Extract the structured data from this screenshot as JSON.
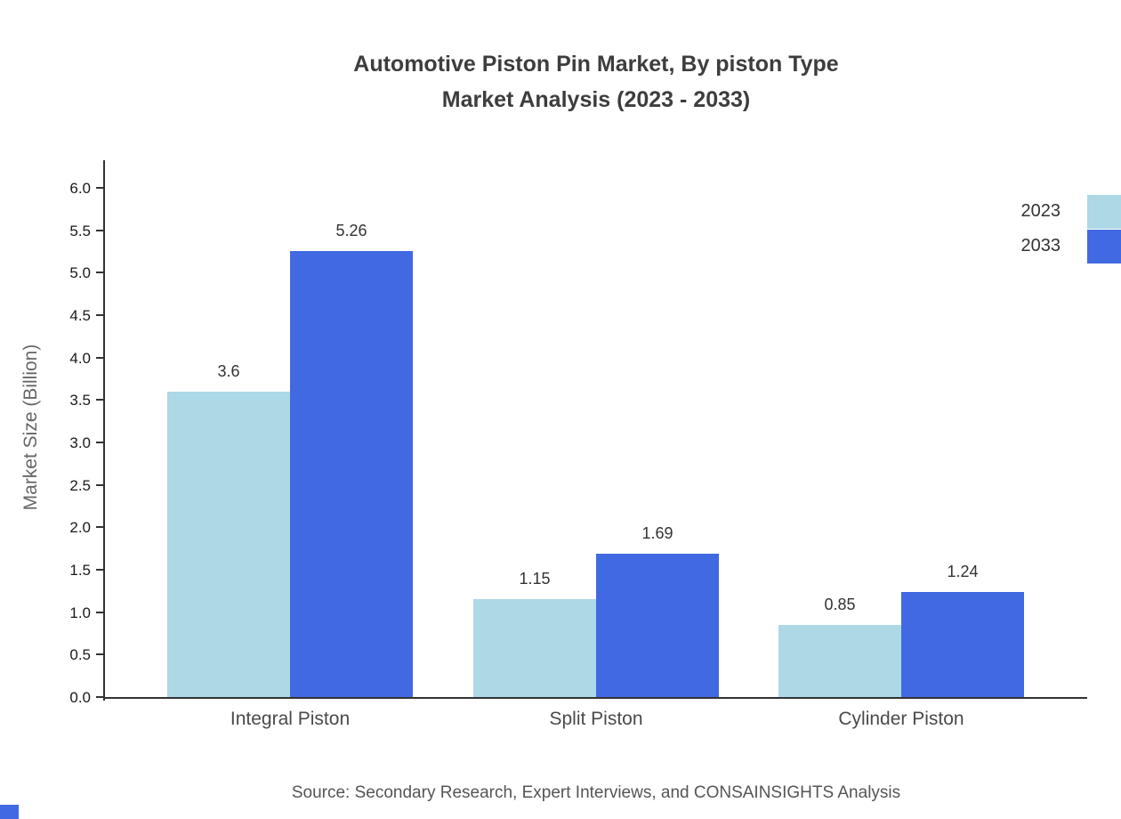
{
  "chart_data": {
    "type": "bar",
    "title": "Automotive Piston Pin Market, By piston Type",
    "subtitle": "Market Analysis (2023 - 2033)",
    "categories": [
      "Integral Piston",
      "Split Piston",
      "Cylinder Piston"
    ],
    "series": [
      {
        "name": "2023",
        "color": "#add8e6",
        "values": [
          3.6,
          1.15,
          0.85
        ]
      },
      {
        "name": "2033",
        "color": "#4169e1",
        "values": [
          5.26,
          1.69,
          1.24
        ]
      }
    ],
    "value_labels": [
      [
        "3.6",
        "1.15",
        "0.85"
      ],
      [
        "5.26",
        "1.69",
        "1.24"
      ]
    ],
    "ylabel": "Market Size (Billion)",
    "xlabel": "",
    "ylim": [
      0,
      6
    ],
    "ytick_step": 0.5,
    "grid": false,
    "legend_position": "top-right"
  },
  "source_note": "Source: Secondary Research, Expert Interviews, and CONSAINSIGHTS Analysis",
  "colors": {
    "series_2023": "#add8e6",
    "series_2033": "#4169e1",
    "axis": "#333333",
    "title_text": "#3d3d3d",
    "corner_accent": "#4169e1"
  }
}
